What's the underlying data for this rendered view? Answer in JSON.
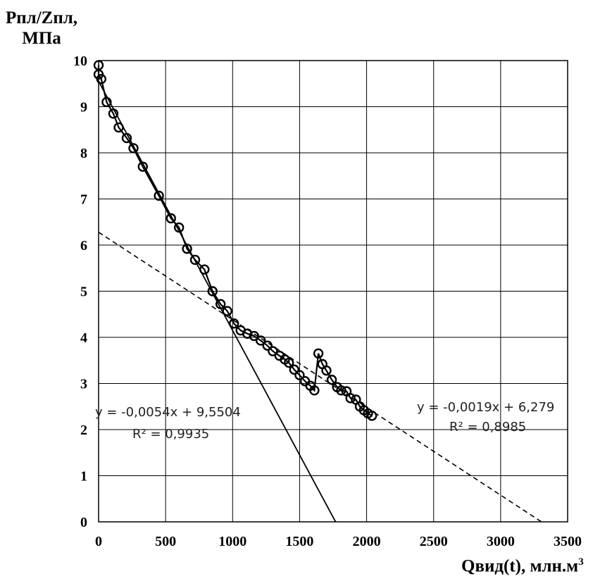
{
  "chart_data": {
    "type": "scatter",
    "ylabel_line1": "Рпл/Zпл,",
    "ylabel_line2": "МПа",
    "xlabel": "Qвид(t), млн.м",
    "xlabel_sup": "3",
    "xlim": [
      0,
      3500
    ],
    "ylim": [
      0,
      10
    ],
    "grid": true,
    "x_ticks": [
      "0",
      "500",
      "1000",
      "1500",
      "2000",
      "2500",
      "3000",
      "3500"
    ],
    "y_ticks": [
      "0",
      "1",
      "2",
      "3",
      "4",
      "5",
      "6",
      "7",
      "8",
      "9",
      "10"
    ],
    "series": [
      {
        "style": "markers-line",
        "color": "#000000",
        "points": [
          [
            0,
            9.9
          ],
          [
            0,
            9.7
          ],
          [
            20,
            9.6
          ],
          [
            60,
            9.1
          ],
          [
            110,
            8.85
          ],
          [
            150,
            8.55
          ],
          [
            210,
            8.32
          ],
          [
            260,
            8.1
          ],
          [
            330,
            7.7
          ],
          [
            450,
            7.07
          ],
          [
            540,
            6.58
          ],
          [
            600,
            6.38
          ],
          [
            660,
            5.92
          ],
          [
            720,
            5.68
          ],
          [
            790,
            5.47
          ],
          [
            850,
            5.0
          ],
          [
            910,
            4.72
          ],
          [
            960,
            4.57
          ],
          [
            1010,
            4.3
          ],
          [
            1060,
            4.15
          ],
          [
            1110,
            4.08
          ],
          [
            1160,
            4.03
          ],
          [
            1210,
            3.93
          ],
          [
            1260,
            3.82
          ],
          [
            1300,
            3.7
          ],
          [
            1350,
            3.6
          ],
          [
            1390,
            3.52
          ],
          [
            1420,
            3.45
          ],
          [
            1460,
            3.3
          ],
          [
            1500,
            3.18
          ],
          [
            1540,
            3.05
          ],
          [
            1580,
            2.95
          ],
          [
            1610,
            2.85
          ],
          [
            1640,
            3.65
          ],
          [
            1670,
            3.42
          ],
          [
            1700,
            3.28
          ],
          [
            1740,
            3.08
          ],
          [
            1780,
            2.92
          ],
          [
            1810,
            2.85
          ],
          [
            1850,
            2.83
          ],
          [
            1880,
            2.68
          ],
          [
            1920,
            2.65
          ],
          [
            1950,
            2.5
          ],
          [
            1980,
            2.42
          ],
          [
            2010,
            2.35
          ],
          [
            2040,
            2.3
          ]
        ]
      }
    ],
    "trendlines": [
      {
        "style": "solid",
        "slope": -0.0054,
        "intercept": 9.5504,
        "x_range": [
          0,
          1769
        ],
        "equation": "y = -0,0054x + 9,5504",
        "r2": "R² = 0,9935"
      },
      {
        "style": "dashed",
        "slope": -0.0019,
        "intercept": 6.279,
        "x_range": [
          0,
          3305
        ],
        "equation": "y = -0,0019x + 6,279",
        "r2": "R² = 0,8985"
      }
    ]
  }
}
